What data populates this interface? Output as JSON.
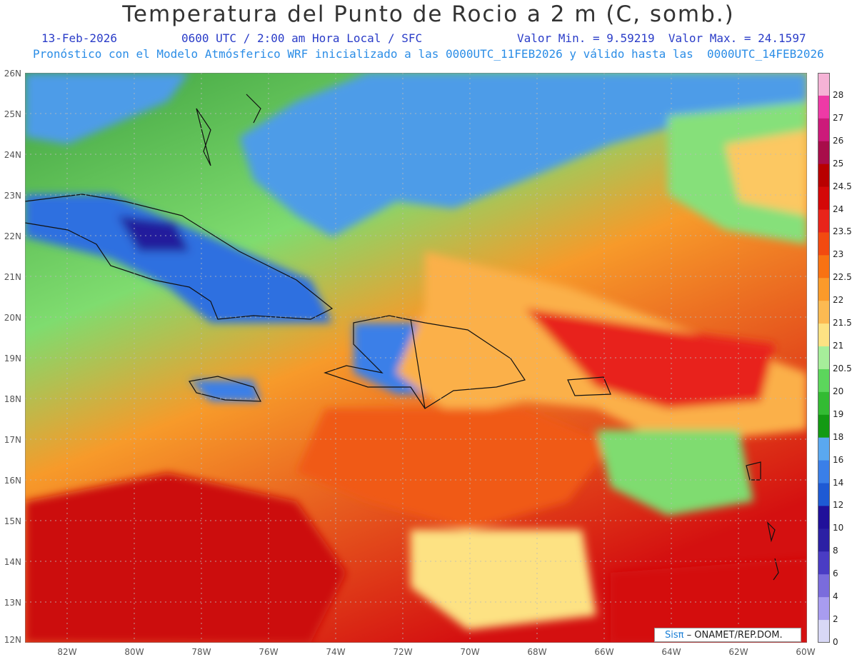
{
  "header": {
    "title": "Temperatura del Punto de Rocio a 2 m (C, somb.)",
    "date": "13-Feb-2026",
    "time": "0600 UTC / 2:00 am Hora Local / SFC",
    "range": "Valor Min. = 9.59219  Valor Max. = 24.1597",
    "forecast_info": "Pronóstico con el Modelo Atmósferico WRF inicializado a las 0000UTC_11FEB2026 y válido hasta las  0000UTC_14FEB2026"
  },
  "map": {
    "lat_labels": [
      "26N",
      "25N",
      "24N",
      "23N",
      "22N",
      "21N",
      "20N",
      "19N",
      "18N",
      "17N",
      "16N",
      "15N",
      "14N",
      "13N",
      "12N"
    ],
    "lon_labels": [
      "82W",
      "80W",
      "78W",
      "76W",
      "74W",
      "72W",
      "70W",
      "68W",
      "66W",
      "64W",
      "62W",
      "60W"
    ],
    "lat_range": [
      12,
      26
    ],
    "lon_range": [
      -83.2,
      -60
    ]
  },
  "colorbar": {
    "levels": [
      "28",
      "27",
      "26",
      "25",
      "24.5",
      "24",
      "23.5",
      "23",
      "22.5",
      "22",
      "21.5",
      "21",
      "20.5",
      "20",
      "19",
      "18",
      "16",
      "14",
      "12",
      "10",
      "8",
      "6",
      "4",
      "2",
      "0"
    ],
    "colors": [
      "#f5b3d6",
      "#ee3aa6",
      "#cc1a7a",
      "#a80d4a",
      "#b80000",
      "#d40808",
      "#e8241a",
      "#f24a10",
      "#f87212",
      "#fb9a2a",
      "#fcba52",
      "#fde283",
      "#a6ee9a",
      "#5cd65c",
      "#33bb33",
      "#139a13",
      "#5aa8f0",
      "#3a7fe8",
      "#1e5ad4",
      "#20109a",
      "#2b20a4",
      "#4a3cc4",
      "#7a6cdc",
      "#a89cf0",
      "#d8d8f6"
    ]
  },
  "credit": {
    "brand": "Sisπ",
    "text": " – ONAMET/REP.DOM."
  }
}
